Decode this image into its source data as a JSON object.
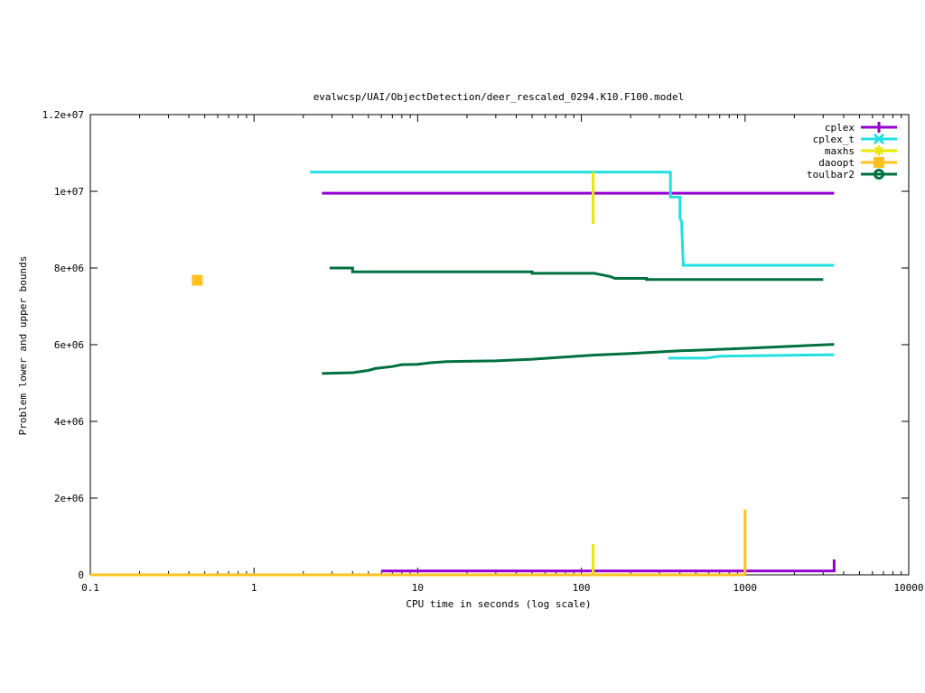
{
  "chart_data": {
    "type": "line",
    "title": "evalwcsp/UAI/ObjectDetection/deer_rescaled_0294.K10.F100.model",
    "xlabel": "CPU time in seconds (log scale)",
    "ylabel": "Problem lower and upper bounds",
    "x_scale": "log",
    "xlim": [
      0.1,
      10000
    ],
    "ylim": [
      0,
      12000000
    ],
    "x_ticks": [
      0.1,
      1,
      10,
      100,
      1000,
      10000
    ],
    "x_tick_labels": [
      "0.1",
      "1",
      "10",
      "100",
      "1000",
      "10000"
    ],
    "y_ticks": [
      0,
      2000000,
      4000000,
      6000000,
      8000000,
      10000000,
      12000000
    ],
    "y_tick_labels": [
      "0",
      "2e+06",
      "4e+06",
      "6e+06",
      "8e+06",
      "1e+07",
      "1.2e+07"
    ],
    "grid": false,
    "legend_position": "top-right",
    "series": [
      {
        "name": "cplex",
        "color": "#9400d3",
        "marker": "plus",
        "lines": [
          [
            [
              2.6,
              9950000
            ],
            [
              3500,
              9950000
            ]
          ],
          [
            [
              6.0,
              100000
            ],
            [
              3500,
              100000
            ],
            [
              3500,
              400000
            ]
          ]
        ]
      },
      {
        "name": "cplex_t",
        "color": "#22e0e0",
        "marker": "cross",
        "lines": [
          [
            [
              2.2,
              10500000
            ],
            [
              350,
              10500000
            ],
            [
              350,
              9850000
            ],
            [
              400,
              9850000
            ],
            [
              400,
              9300000
            ],
            [
              410,
              9200000
            ],
            [
              415,
              8500000
            ],
            [
              420,
              8070000
            ],
            [
              3500,
              8070000
            ]
          ],
          [
            [
              340,
              5650000
            ],
            [
              580,
              5650000
            ],
            [
              700,
              5700000
            ],
            [
              3500,
              5740000
            ]
          ]
        ]
      },
      {
        "name": "maxhs",
        "color": "#e8e800",
        "marker": "star",
        "lines": [
          [
            [
              118,
              9150000
            ],
            [
              118,
              10500000
            ]
          ],
          [
            [
              118,
              0
            ],
            [
              118,
              800000
            ]
          ],
          [
            [
              0.1,
              0
            ],
            [
              120,
              0
            ]
          ]
        ]
      },
      {
        "name": "daoopt",
        "color": "#ffc020",
        "marker": "square",
        "points": [
          [
            0.45,
            7680000
          ]
        ],
        "lines": [
          [
            [
              1000,
              0
            ],
            [
              1000,
              1700000
            ]
          ],
          [
            [
              0.1,
              0
            ],
            [
              1000,
              0
            ]
          ]
        ]
      },
      {
        "name": "toulbar2",
        "color": "#007040",
        "marker": "circle",
        "lines": [
          [
            [
              2.9,
              8000000
            ],
            [
              4.0,
              8000000
            ],
            [
              4.0,
              7900000
            ],
            [
              50,
              7900000
            ],
            [
              50,
              7860000
            ],
            [
              120,
              7860000
            ],
            [
              130,
              7830000
            ],
            [
              150,
              7780000
            ],
            [
              160,
              7730000
            ],
            [
              250,
              7730000
            ],
            [
              250,
              7700000
            ],
            [
              3000,
              7700000
            ]
          ],
          [
            [
              2.6,
              5250000
            ],
            [
              4.0,
              5270000
            ],
            [
              5.0,
              5330000
            ],
            [
              5.5,
              5380000
            ],
            [
              7.0,
              5430000
            ],
            [
              8.0,
              5480000
            ],
            [
              10,
              5490000
            ],
            [
              12,
              5530000
            ],
            [
              15,
              5560000
            ],
            [
              30,
              5580000
            ],
            [
              50,
              5620000
            ],
            [
              80,
              5680000
            ],
            [
              120,
              5730000
            ],
            [
              200,
              5770000
            ],
            [
              400,
              5840000
            ],
            [
              800,
              5890000
            ],
            [
              1500,
              5940000
            ],
            [
              3500,
              6010000
            ]
          ]
        ]
      }
    ]
  }
}
